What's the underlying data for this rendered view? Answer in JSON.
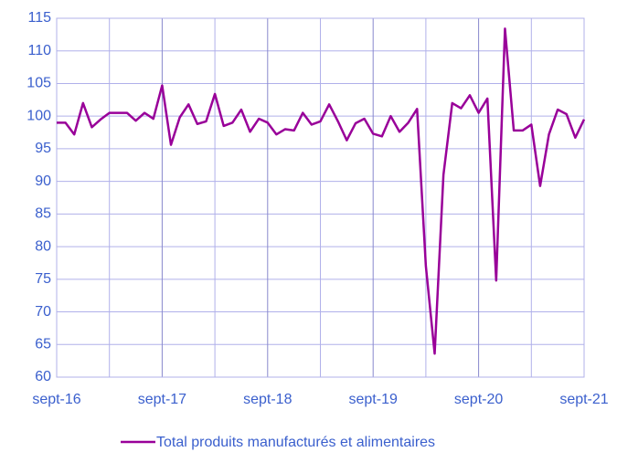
{
  "chart_data": {
    "type": "line",
    "categories": [
      "sept-16",
      null,
      null,
      null,
      null,
      null,
      null,
      null,
      null,
      null,
      null,
      null,
      "sept-17",
      null,
      null,
      null,
      null,
      null,
      null,
      null,
      null,
      null,
      null,
      null,
      "sept-18",
      null,
      null,
      null,
      null,
      null,
      null,
      null,
      null,
      null,
      null,
      null,
      "sept-19",
      null,
      null,
      null,
      null,
      null,
      null,
      null,
      null,
      null,
      null,
      null,
      "sept-20",
      null,
      null,
      null,
      null,
      null,
      null,
      null,
      null,
      null,
      null,
      null,
      "sept-21"
    ],
    "series": [
      {
        "name": "Total produits manufacturés et alimentaires",
        "color": "#990099",
        "values": [
          99,
          99,
          97.2,
          102,
          98.3,
          99.5,
          100.5,
          100.5,
          100.5,
          99.3,
          100.5,
          99.6,
          104.7,
          95.6,
          99.8,
          101.8,
          98.8,
          99.2,
          103.4,
          98.5,
          99,
          101,
          97.6,
          99.6,
          99,
          97.2,
          98,
          97.8,
          100.5,
          98.7,
          99.2,
          101.8,
          99.2,
          96.3,
          98.9,
          99.6,
          97.3,
          96.9,
          100,
          97.6,
          99,
          101.1,
          77,
          63.6,
          91,
          102,
          101.2,
          103.2,
          100.5,
          102.7,
          74.8,
          113.4,
          97.8,
          97.8,
          98.7,
          89.3,
          97.2,
          101,
          100.3,
          96.7,
          99.5
        ]
      }
    ],
    "ylim": [
      60,
      115
    ],
    "yticks": [
      60,
      65,
      70,
      75,
      80,
      85,
      90,
      95,
      100,
      105,
      110,
      115
    ],
    "grid": true,
    "legend": "bottom"
  }
}
